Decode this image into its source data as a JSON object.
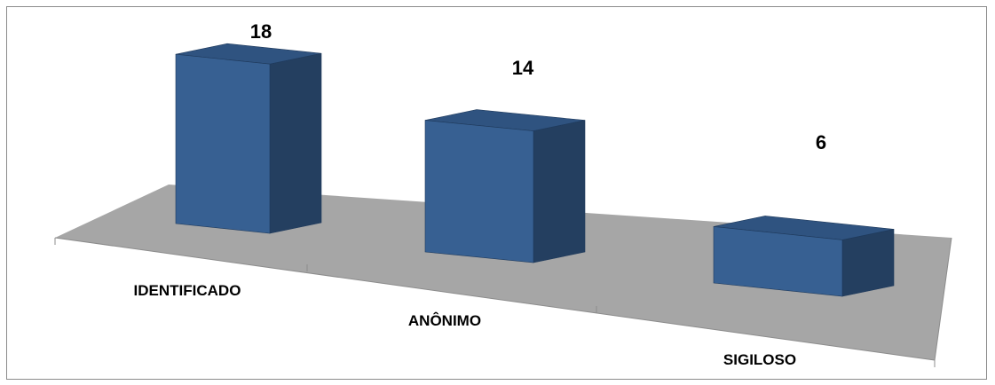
{
  "chart_data": {
    "type": "bar",
    "style": "3d-column",
    "categories": [
      "IDENTIFICADO",
      "ANÔNIMO",
      "SIGILOSO"
    ],
    "values": [
      18,
      14,
      6
    ],
    "data_labels": [
      "18",
      "14",
      "6"
    ],
    "title": "",
    "xlabel": "",
    "ylabel": "",
    "grid": false,
    "legend": "none",
    "colors": {
      "bar_front": "#376092",
      "bar_side": "#243F60",
      "bar_top": "#2F5380",
      "floor": "#A6A6A6",
      "frame": "#8C8C8C"
    }
  }
}
